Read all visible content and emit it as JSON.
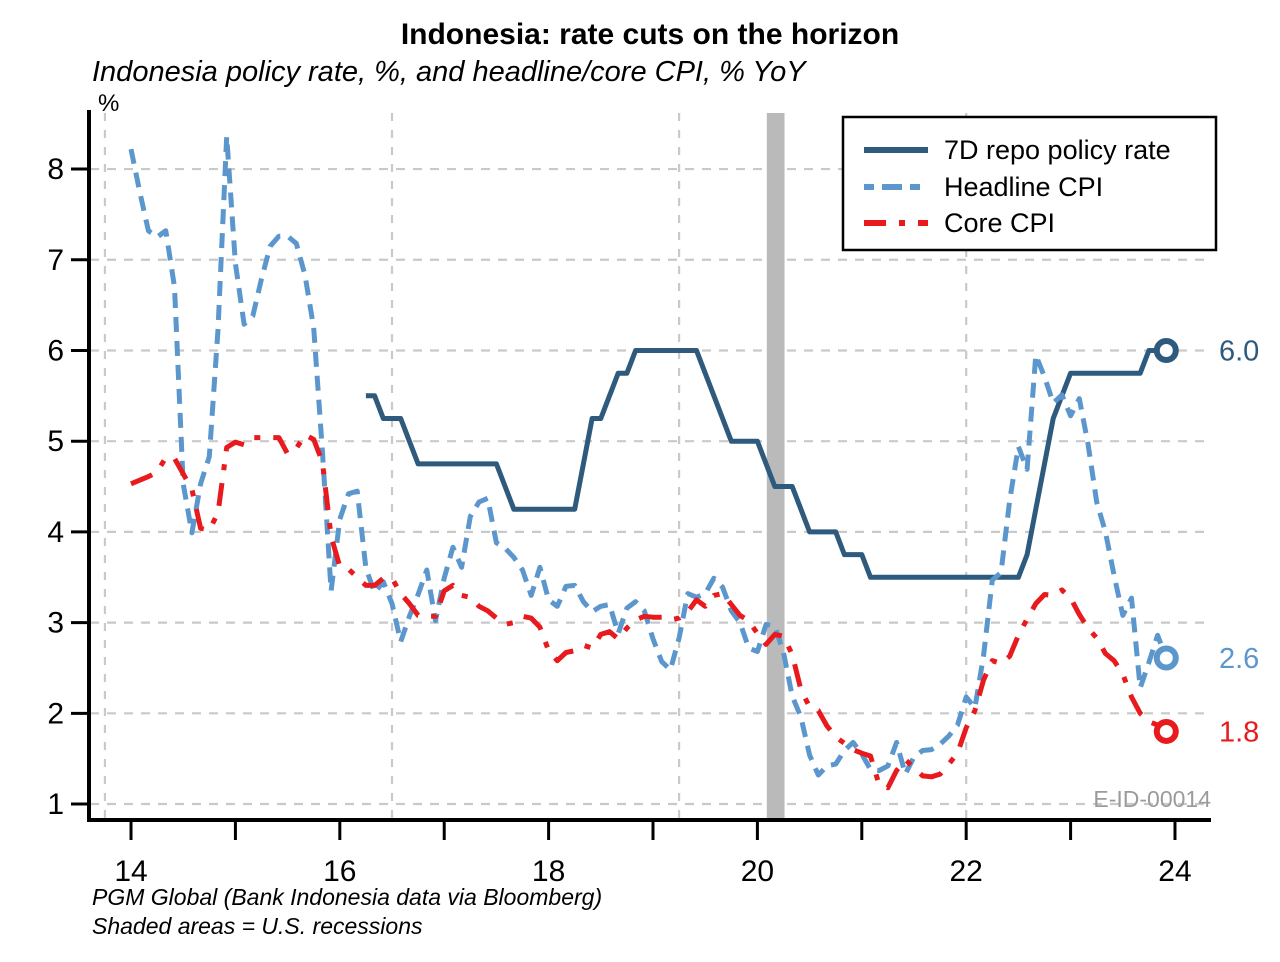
{
  "chart_data": {
    "type": "line",
    "title": "Indonesia: rate cuts on the horizon",
    "subtitle": "Indonesia policy rate, %, and headline/core CPI, % YoY",
    "unit_label": "%",
    "watermark": "E-ID-00014",
    "source_note": "PGM Global (Bank Indonesia data via Bloomberg)",
    "shading_note": "Shaded areas = U.S. recessions",
    "colors": {
      "policy_rate": "#2e5a7d",
      "headline_cpi": "#5b97cd",
      "core_cpi": "#e81a1d",
      "gridline": "#c9c9c9",
      "recession_band": "#bababa",
      "axis": "#000000",
      "watermark": "#9b9b9b"
    },
    "x_axis": {
      "lim": [
        13.607,
        24.345
      ],
      "ticks": [
        14,
        15,
        16,
        17,
        18,
        19,
        20,
        21,
        22,
        23,
        24
      ],
      "tick_labels": [
        "14",
        "",
        "16",
        "",
        "18",
        "",
        "20",
        "",
        "22",
        "",
        "24"
      ],
      "minor_gridlines": [
        13.75,
        16.5,
        19.25,
        22.0
      ]
    },
    "y_axis": {
      "lim": [
        0.824,
        8.618
      ],
      "ticks": [
        1,
        2,
        3,
        4,
        5,
        6,
        7,
        8
      ],
      "tick_labels": [
        "1",
        "2",
        "3",
        "4",
        "5",
        "6",
        "7",
        "8"
      ]
    },
    "recession_band": {
      "from": 20.09,
      "to": 20.26
    },
    "legend": {
      "position": "top-right"
    },
    "series": [
      {
        "name": "7D repo policy rate",
        "color": "#2e5a7d",
        "style": "solid",
        "end_label": "6.0",
        "start_year": 2016,
        "start_month": 4,
        "monthly_values": [
          5.5,
          5.5,
          5.25,
          5.25,
          5.25,
          5.0,
          4.75,
          4.75,
          4.75,
          4.75,
          4.75,
          4.75,
          4.75,
          4.75,
          4.75,
          4.75,
          4.5,
          4.25,
          4.25,
          4.25,
          4.25,
          4.25,
          4.25,
          4.25,
          4.25,
          4.75,
          5.25,
          5.25,
          5.5,
          5.75,
          5.75,
          6.0,
          6.0,
          6.0,
          6.0,
          6.0,
          6.0,
          6.0,
          6.0,
          5.75,
          5.5,
          5.25,
          5.0,
          5.0,
          5.0,
          5.0,
          4.75,
          4.5,
          4.5,
          4.5,
          4.25,
          4.0,
          4.0,
          4.0,
          4.0,
          3.75,
          3.75,
          3.75,
          3.5,
          3.5,
          3.5,
          3.5,
          3.5,
          3.5,
          3.5,
          3.5,
          3.5,
          3.5,
          3.5,
          3.5,
          3.5,
          3.5,
          3.5,
          3.5,
          3.5,
          3.5,
          3.75,
          4.25,
          4.75,
          5.25,
          5.5,
          5.75,
          5.75,
          5.75,
          5.75,
          5.75,
          5.75,
          5.75,
          5.75,
          5.75,
          6.0,
          6.0,
          6.0
        ]
      },
      {
        "name": "Headline CPI",
        "color": "#5b97cd",
        "style": "dashed",
        "end_label": "2.6",
        "start_year": 2014,
        "start_month": 1,
        "monthly_values": [
          8.22,
          7.75,
          7.32,
          7.25,
          7.32,
          6.7,
          4.53,
          3.99,
          4.53,
          4.83,
          6.23,
          8.36,
          6.96,
          6.29,
          6.38,
          6.79,
          7.15,
          7.26,
          7.26,
          7.18,
          6.83,
          6.25,
          4.89,
          3.35,
          4.14,
          4.42,
          4.45,
          3.6,
          3.33,
          3.45,
          3.21,
          2.79,
          3.07,
          3.31,
          3.58,
          3.02,
          3.49,
          3.83,
          3.61,
          4.17,
          4.33,
          4.37,
          3.88,
          3.82,
          3.72,
          3.58,
          3.3,
          3.61,
          3.25,
          3.18,
          3.4,
          3.41,
          3.23,
          3.12,
          3.18,
          3.2,
          2.88,
          3.16,
          3.23,
          3.13,
          2.82,
          2.57,
          2.48,
          2.83,
          3.32,
          3.28,
          3.32,
          3.49,
          3.39,
          3.13,
          3.0,
          2.72,
          2.68,
          2.98,
          2.96,
          2.67,
          2.19,
          1.96,
          1.54,
          1.32,
          1.42,
          1.44,
          1.59,
          1.68,
          1.55,
          1.38,
          1.37,
          1.42,
          1.68,
          1.33,
          1.52,
          1.59,
          1.6,
          1.66,
          1.75,
          1.87,
          2.18,
          2.06,
          2.64,
          3.47,
          3.55,
          4.35,
          4.94,
          4.69,
          5.95,
          5.71,
          5.42,
          5.51,
          5.28,
          5.47,
          4.97,
          4.33,
          4.0,
          3.52,
          3.08,
          3.27,
          2.28,
          2.56,
          2.86,
          2.61
        ]
      },
      {
        "name": "Core CPI",
        "color": "#e81a1d",
        "style": "dash-dot",
        "end_label": "1.8",
        "start_year": 2014,
        "start_month": 1,
        "monthly_values": [
          4.53,
          4.57,
          4.61,
          4.66,
          4.82,
          4.81,
          4.64,
          4.47,
          4.04,
          4.02,
          4.21,
          4.93,
          4.99,
          4.96,
          5.04,
          5.04,
          5.04,
          5.04,
          4.86,
          4.92,
          5.07,
          5.02,
          4.77,
          3.95,
          3.62,
          3.59,
          3.5,
          3.41,
          3.41,
          3.49,
          3.49,
          3.32,
          3.21,
          3.08,
          3.07,
          3.07,
          3.35,
          3.41,
          3.3,
          3.28,
          3.18,
          3.13,
          3.05,
          2.98,
          3.0,
          3.07,
          3.05,
          2.95,
          2.69,
          2.58,
          2.67,
          2.69,
          2.75,
          2.72,
          2.87,
          2.9,
          2.82,
          2.94,
          3.03,
          3.07,
          3.06,
          3.06,
          3.03,
          3.05,
          3.12,
          3.25,
          3.18,
          3.3,
          3.32,
          3.2,
          3.08,
          3.02,
          2.88,
          2.76,
          2.87,
          2.85,
          2.65,
          2.26,
          2.07,
          2.03,
          1.86,
          1.74,
          1.67,
          1.6,
          1.56,
          1.53,
          1.21,
          1.18,
          1.37,
          1.49,
          1.4,
          1.31,
          1.3,
          1.33,
          1.44,
          1.56,
          1.84,
          2.03,
          2.37,
          2.58,
          2.55,
          2.63,
          2.86,
          3.04,
          3.21,
          3.31,
          3.3,
          3.36,
          3.27,
          3.09,
          2.94,
          2.83,
          2.66,
          2.58,
          2.43,
          2.18,
          2.0,
          1.91,
          1.87,
          1.8
        ]
      }
    ]
  }
}
